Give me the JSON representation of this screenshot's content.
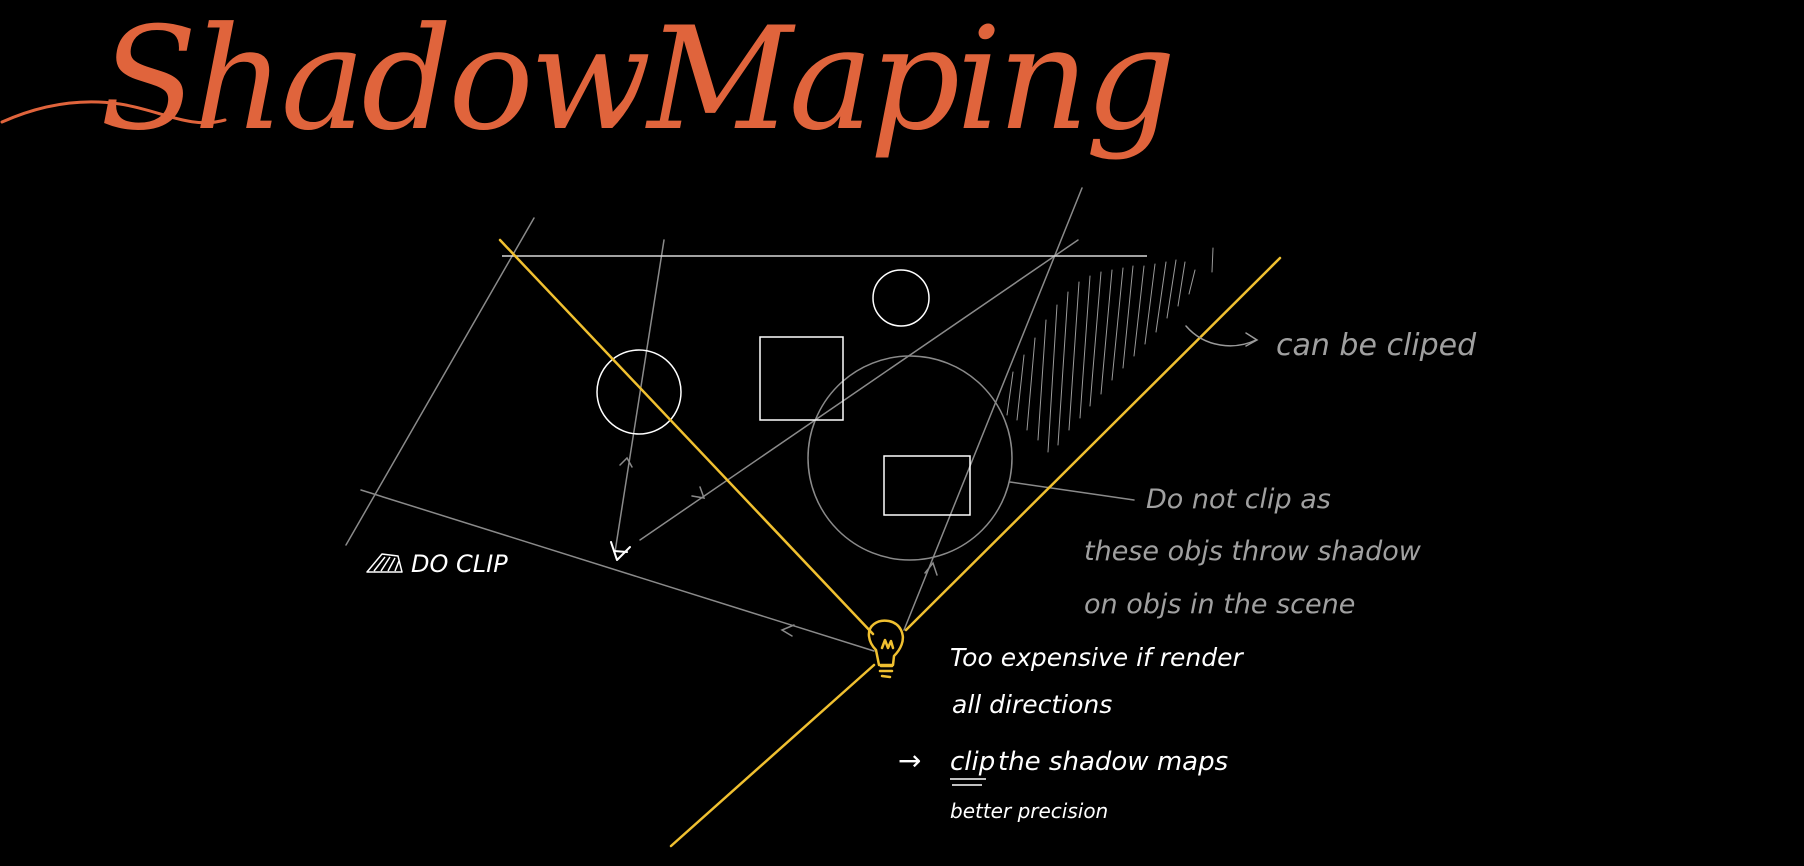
{
  "title": "ShadowMaping",
  "labels": {
    "do_clip": "DO CLIP",
    "can_be_clipped": "can be cliped",
    "do_not_clip_line1": "Do not clip as",
    "do_not_clip_line2": "these objs throw shadow",
    "do_not_clip_line3": "on objs in the scene",
    "expensive_line1": "Too expensive if render",
    "expensive_line2": "all directions",
    "clip_arrow": "→",
    "clip_word": "clip",
    "clip_rest": "the shadow maps",
    "precision": "better precision"
  },
  "colors": {
    "background": "#000000",
    "title": "#e0643c",
    "frustum": "#f0c030",
    "light": "#f0c030",
    "objects": "#ffffff",
    "guides": "#8a8a8a",
    "notes_grey": "#a0a0a0",
    "notes_white": "#ffffff"
  },
  "icons": {
    "light": "light-bulb-icon",
    "camera": "camera-eye-icon",
    "frustum_small": "frustum-icon"
  }
}
